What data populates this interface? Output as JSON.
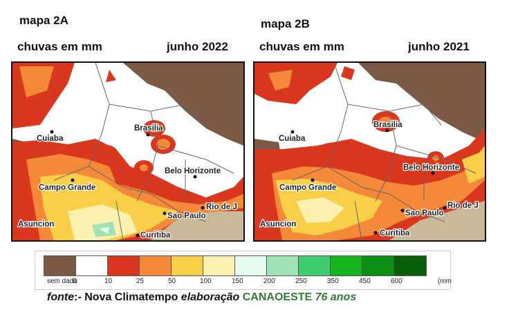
{
  "map_a": {
    "id_label": "mapa 2A",
    "unit_label": "chuvas em mm",
    "period": "junho 2022"
  },
  "map_b": {
    "id_label": "mapa 2B",
    "unit_label": "chuvas em mm",
    "period": "junho 2021"
  },
  "cities": {
    "cuiaba": "Cuiaba",
    "brasilia": "Brasilia",
    "belo_horizonte": "Belo Horizonte",
    "campo_grande": "Campo Grande",
    "sao_paulo": "Sao Paulo",
    "rio": "Rio de J",
    "asuncion": "Asuncion",
    "curitiba": "Curitiba"
  },
  "legend": {
    "unit": "(mm",
    "classes": [
      {
        "label": "sem dado",
        "color": "#7a5a45"
      },
      {
        "label": "0",
        "color": "#ffffff"
      },
      {
        "label": "10",
        "color": "#d9381e"
      },
      {
        "label": "25",
        "color": "#f5893a"
      },
      {
        "label": "50",
        "color": "#f8cf46"
      },
      {
        "label": "100",
        "color": "#fdf0b0"
      },
      {
        "label": "150",
        "color": "#e6fbef"
      },
      {
        "label": "200",
        "color": "#9fe3b7"
      },
      {
        "label": "250",
        "color": "#3ece6f"
      },
      {
        "label": "350",
        "color": "#14b41c"
      },
      {
        "label": "450",
        "color": "#0b8f12"
      },
      {
        "label": "600",
        "color": "#065e08"
      }
    ]
  },
  "footer": {
    "fonte": "fonte",
    "source": ":- Nova Climatempo ",
    "elaboracao": "elaboração",
    "org": " CANAOESTE",
    "anos": " 76 anos"
  }
}
